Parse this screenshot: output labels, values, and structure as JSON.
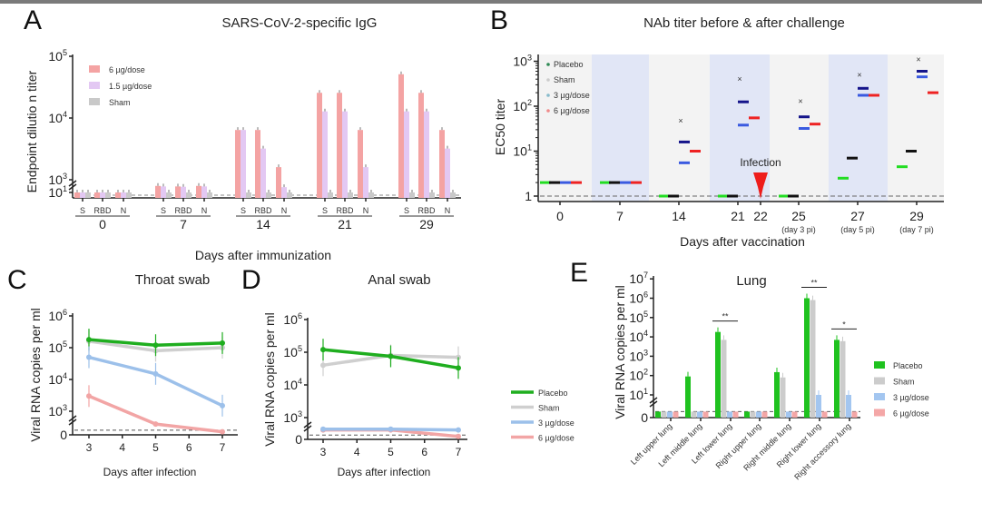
{
  "figure": {
    "top_border_color": "#7a7a7a"
  },
  "chart_data": [
    {
      "panel_label": "A",
      "type": "bar",
      "title": "SARS-CoV-2-specific IgG",
      "ylabel": "Endpoint  dilutio n titer",
      "xlabel": "Days after immunization",
      "yscale": "log",
      "axis_break": true,
      "ylim": [
        10,
        100000
      ],
      "yticks": [
        100000,
        10000,
        1000,
        10
      ],
      "groups": [
        "0",
        "7",
        "14",
        "21",
        "29"
      ],
      "subcategories": [
        "S",
        "RBD",
        "N"
      ],
      "legend_position": "top-left",
      "series": [
        {
          "name": "6 µg/dose",
          "color": "#f4a3a3",
          "values": [
            [
              10,
              10,
              10
            ],
            [
              400,
              300,
              400
            ],
            [
              6400,
              6400,
              1600
            ],
            [
              25600,
              25600,
              6400
            ],
            [
              51200,
              25600,
              6400
            ]
          ]
        },
        {
          "name": "1.5 µg/dose",
          "color": "#e3c8f3",
          "values": [
            [
              10,
              10,
              10
            ],
            [
              300,
              250,
              300
            ],
            [
              6400,
              3200,
              200
            ],
            [
              12800,
              12800,
              1600
            ],
            [
              12800,
              12800,
              3200
            ]
          ]
        },
        {
          "name": "Sham",
          "color": "#c9c9c9",
          "values": [
            [
              10,
              10,
              10
            ],
            [
              10,
              10,
              10
            ],
            [
              10,
              10,
              10
            ],
            [
              10,
              10,
              10
            ],
            [
              10,
              10,
              10
            ]
          ]
        }
      ]
    },
    {
      "panel_label": "B",
      "type": "scatter",
      "title": "NAb titer before & after challenge",
      "ylabel": "EC50 titer",
      "xlabel": "Days after vaccination",
      "yscale": "log",
      "ylim": [
        1,
        1000
      ],
      "yticks": [
        1,
        10,
        100,
        1000
      ],
      "categories": [
        "0",
        "7",
        "14",
        "21",
        "22",
        "25",
        "27",
        "29"
      ],
      "sublabels": [
        "",
        "",
        "",
        "",
        "",
        "(day 3 pi)",
        "(day 5 pi)",
        "(day 7 pi)"
      ],
      "annotation": "Infection",
      "annotation_at": "22",
      "annotation_color": "#ee1c1c",
      "detection_limit": 1,
      "band_colors": [
        "#f3f3f3",
        "#e1e6f6"
      ],
      "legend_position": "top-left",
      "series": [
        {
          "name": "Placebo",
          "color": "#22dd22",
          "legend_color": "#2f8a55",
          "values": [
            2,
            2,
            1,
            1,
            null,
            1,
            2.5,
            4.5
          ]
        },
        {
          "name": "Sham",
          "color": "#111111",
          "legend_color": "#cccccc",
          "values": [
            2,
            2,
            1,
            1,
            null,
            1,
            7,
            10
          ]
        },
        {
          "name": "3 µg/dose",
          "color": "#3a5ae0",
          "legend_color": "#88bbcc",
          "values": [
            2,
            2,
            5.5,
            38,
            null,
            32,
            175,
            450
          ]
        },
        {
          "color": "#14148a",
          "values": [
            null,
            null,
            16,
            125,
            null,
            58,
            250,
            600
          ]
        },
        {
          "name": "6 µg/dose",
          "color": "#ee2222",
          "legend_color": "#f08a8a",
          "values": [
            2,
            2,
            10,
            55,
            null,
            40,
            175,
            200
          ]
        }
      ],
      "max_markers": [
        null,
        null,
        48,
        400,
        null,
        130,
        500,
        1100
      ]
    },
    {
      "panel_label": "C",
      "type": "line",
      "title": "Throat swab",
      "ylabel": "Viral RNA copies per ml",
      "xlabel": "Days after infection",
      "yscale": "log",
      "axis_break": true,
      "ylim": [
        0,
        1000000
      ],
      "yticks": [
        0,
        1000,
        10000,
        100000,
        1000000
      ],
      "x": [
        3,
        5,
        7
      ],
      "xticks": [
        3,
        4,
        5,
        6,
        7
      ],
      "detection_limit": 300,
      "series": [
        {
          "name": "Sham",
          "color": "#cfcfcf",
          "values": [
            160000,
            80000,
            100000
          ]
        },
        {
          "name": "Placebo",
          "color": "#1fae1f",
          "values": [
            180000,
            120000,
            140000
          ]
        },
        {
          "name": "3 µg/dose",
          "color": "#9cc0ea",
          "values": [
            50000,
            15000,
            1500
          ]
        },
        {
          "name": "6 µg/dose",
          "color": "#f2a5a5",
          "values": [
            3000,
            700,
            200
          ]
        }
      ]
    },
    {
      "panel_label": "D",
      "type": "line",
      "title": "Anal swab",
      "ylabel": "Viral RNA copies per ml",
      "xlabel": "Days after infection",
      "yscale": "log",
      "axis_break": true,
      "ylim": [
        0,
        1000000
      ],
      "yticks": [
        0,
        1000,
        10000,
        100000,
        1000000
      ],
      "x": [
        3,
        5,
        7
      ],
      "xticks": [
        3,
        4,
        5,
        6,
        7
      ],
      "detection_limit": 300,
      "legend_position": "right",
      "legend": [
        {
          "name": "Placebo",
          "color": "#1fae1f"
        },
        {
          "name": "Sham",
          "color": "#cfcfcf"
        },
        {
          "name": "3 µg/dose",
          "color": "#9cc0ea"
        },
        {
          "name": "6 µg/dose",
          "color": "#f2a5a5"
        }
      ],
      "series": [
        {
          "name": "Sham",
          "color": "#cfcfcf",
          "values": [
            40000,
            80000,
            70000
          ]
        },
        {
          "name": "Placebo",
          "color": "#1fae1f",
          "values": [
            120000,
            75000,
            33000
          ]
        },
        {
          "name": "6 µg/dose",
          "color": "#f2a5a5",
          "values": [
            650,
            650,
            200
          ]
        },
        {
          "name": "3 µg/dose",
          "color": "#9cc0ea",
          "values": [
            700,
            700,
            650
          ]
        }
      ]
    },
    {
      "panel_label": "E",
      "type": "bar",
      "title": "Lung",
      "ylabel": "Viral RNA copies per ml",
      "yscale": "log",
      "axis_break": true,
      "ylim": [
        0,
        10000000
      ],
      "yticks": [
        0,
        10,
        100,
        1000,
        10000,
        100000,
        1000000,
        10000000
      ],
      "categories": [
        "Left upper lung",
        "Left middle lung",
        "Left lower lung",
        "Right upper lung",
        "Right middle lung",
        "Right lower lung",
        "Right accessory lung"
      ],
      "detection_limit": 3,
      "legend_position": "right",
      "series": [
        {
          "name": "Placebo",
          "color": "#1fc21f",
          "values": [
            3,
            90,
            18000,
            3,
            150,
            1000000,
            7000
          ]
        },
        {
          "name": "Sham",
          "color": "#cccccc",
          "values": [
            3,
            3,
            7000,
            3,
            80,
            800000,
            6000
          ]
        },
        {
          "name": "3 µg/dose",
          "color": "#a3c6f0",
          "values": [
            3,
            3,
            3,
            3,
            3,
            10,
            10
          ]
        },
        {
          "name": "6 µg/dose",
          "color": "#f4a7a7",
          "values": [
            3,
            3,
            3,
            3,
            3,
            3,
            3
          ]
        }
      ],
      "significance": [
        {
          "category": "Left lower lung",
          "label": "**"
        },
        {
          "category": "Right lower lung",
          "label": "**"
        },
        {
          "category": "Right accessory lung",
          "label": "*"
        }
      ]
    }
  ]
}
